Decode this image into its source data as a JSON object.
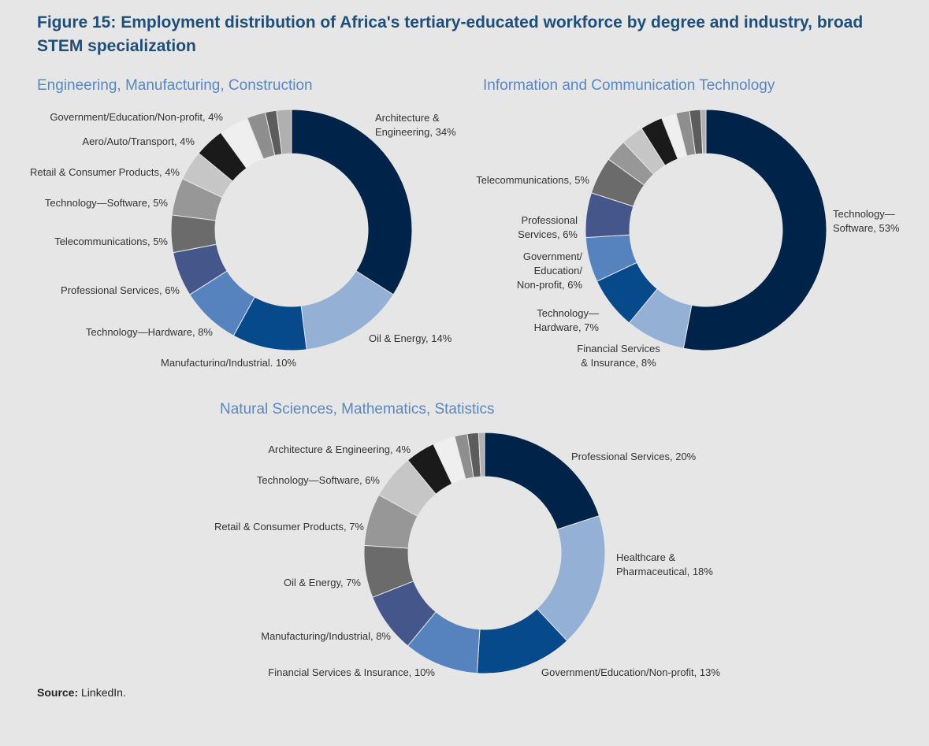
{
  "title": "Figure 15: Employment distribution of Africa's tertiary-educated workforce by degree and industry, broad STEM specialization",
  "source": {
    "label": "Source:",
    "text": "LinkedIn."
  },
  "colors": {
    "navy": "#00234a",
    "light_blue": "#94b1d5",
    "medium_blue": "#064a8c",
    "steel_blue": "#5683bd",
    "slate": "#45578a",
    "dark_gray": "#6b6b6b",
    "gray": "#979797",
    "light_gray": "#c6c6c6",
    "black": "#1a1a1a",
    "white": "#efefef",
    "gray2": "#8e8e8e",
    "dark_gray2": "#5c5c5c",
    "light_gray2": "#b0b0b0"
  },
  "chart_data": [
    {
      "type": "pie",
      "title": "Engineering, Manufacturing, Construction",
      "slices": [
        {
          "label": "Architecture &\nEngineering, 34%",
          "value": 34,
          "color": "navy"
        },
        {
          "label": "Oil & Energy, 14%",
          "value": 14,
          "color": "light_blue"
        },
        {
          "label": "Manufacturing/Industrial, 10%",
          "value": 10,
          "color": "medium_blue"
        },
        {
          "label": "Technology—Hardware, 8%",
          "value": 8,
          "color": "steel_blue"
        },
        {
          "label": "Professional Services, 6%",
          "value": 6,
          "color": "slate"
        },
        {
          "label": "Telecommunications, 5%",
          "value": 5,
          "color": "dark_gray"
        },
        {
          "label": "Technology—Software, 5%",
          "value": 5,
          "color": "gray"
        },
        {
          "label": "Retail & Consumer Products, 4%",
          "value": 4,
          "color": "light_gray"
        },
        {
          "label": "Aero/Auto/Transport, 4%",
          "value": 4,
          "color": "black"
        },
        {
          "label": "Government/Education/Non-profit, 4%",
          "value": 4,
          "color": "white"
        },
        {
          "label": "",
          "value": 2.5,
          "color": "gray2"
        },
        {
          "label": "",
          "value": 1.5,
          "color": "dark_gray2"
        },
        {
          "label": "",
          "value": 2,
          "color": "light_gray2"
        }
      ]
    },
    {
      "type": "pie",
      "title": "Information and Communication Technology",
      "slices": [
        {
          "label": "Technology—\nSoftware, 53%",
          "value": 53,
          "color": "navy"
        },
        {
          "label": "Financial Services\n& Insurance, 8%",
          "value": 8,
          "color": "light_blue"
        },
        {
          "label": "Technology—\nHardware, 7%",
          "value": 7,
          "color": "medium_blue"
        },
        {
          "label": "Government/\nEducation/\nNon-profit, 6%",
          "value": 6,
          "color": "steel_blue"
        },
        {
          "label": "Professional\nServices, 6%",
          "value": 6,
          "color": "slate"
        },
        {
          "label": "Telecommunications, 5%",
          "value": 5,
          "color": "dark_gray"
        },
        {
          "label": "",
          "value": 3,
          "color": "gray"
        },
        {
          "label": "",
          "value": 3,
          "color": "light_gray"
        },
        {
          "label": "",
          "value": 3,
          "color": "black"
        },
        {
          "label": "",
          "value": 2,
          "color": "white"
        },
        {
          "label": "",
          "value": 1.8,
          "color": "gray2"
        },
        {
          "label": "",
          "value": 1.5,
          "color": "dark_gray2"
        },
        {
          "label": "",
          "value": 0.7,
          "color": "light_gray2"
        }
      ]
    },
    {
      "type": "pie",
      "title": "Natural Sciences, Mathematics, Statistics",
      "slices": [
        {
          "label": "Professional Services, 20%",
          "value": 20,
          "color": "navy"
        },
        {
          "label": "Healthcare &\nPharmaceutical, 18%",
          "value": 18,
          "color": "light_blue"
        },
        {
          "label": "Government/Education/Non-profit, 13%",
          "value": 13,
          "color": "medium_blue"
        },
        {
          "label": "Financial Services & Insurance, 10%",
          "value": 10,
          "color": "steel_blue"
        },
        {
          "label": "Manufacturing/Industrial, 8%",
          "value": 8,
          "color": "slate"
        },
        {
          "label": "Oil & Energy, 7%",
          "value": 7,
          "color": "dark_gray"
        },
        {
          "label": "Retail & Consumer Products, 7%",
          "value": 7,
          "color": "gray"
        },
        {
          "label": "Technology—Software, 6%",
          "value": 6,
          "color": "light_gray"
        },
        {
          "label": "Architecture & Engineering, 4%",
          "value": 4,
          "color": "black"
        },
        {
          "label": "",
          "value": 3,
          "color": "white"
        },
        {
          "label": "",
          "value": 1.7,
          "color": "gray2"
        },
        {
          "label": "",
          "value": 1.5,
          "color": "dark_gray2"
        },
        {
          "label": "",
          "value": 0.8,
          "color": "light_gray2"
        }
      ]
    }
  ]
}
